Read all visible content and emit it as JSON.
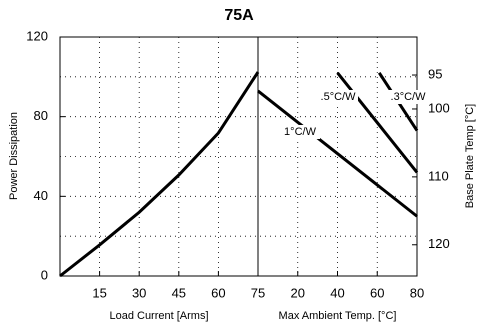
{
  "chart_data": {
    "type": "line",
    "title": "75A",
    "ylabel": "Power Dissipation",
    "ylim": [
      0,
      120
    ],
    "yticks": [
      0,
      40,
      80,
      120
    ],
    "ygrid": [
      20,
      40,
      60,
      80,
      100
    ],
    "grid": true,
    "y2label": "Base Plate Temp [°C]",
    "y2lim": [
      124.6,
      89.4
    ],
    "y2ticks": [
      95,
      100,
      110,
      120
    ],
    "panels": [
      {
        "xlabel": "Load Current  [Arms]",
        "xlim": [
          0,
          75
        ],
        "xticks": [
          15,
          30,
          45,
          60,
          75
        ],
        "series": [
          {
            "x": [
              0,
              15,
              30,
              45,
              60,
              75
            ],
            "values": [
              0,
              15.6,
              32,
              50.7,
              71.8,
              102.4
            ],
            "color": "#000000"
          }
        ]
      },
      {
        "xlabel": "Max Ambient Temp. [°C]",
        "xlim": [
          0,
          80
        ],
        "xticks": [
          20,
          40,
          60,
          80
        ],
        "series": [
          {
            "name": "1°C/W",
            "x": [
              0,
              80
            ],
            "values": [
              92.9,
              30
            ],
            "color": "#000000"
          },
          {
            "name": ".5°C/W",
            "x": [
              40,
              80
            ],
            "values": [
              102,
              52
            ],
            "color": "#000000"
          },
          {
            "name": ".3°C/W",
            "x": [
              61,
              80
            ],
            "values": [
              102,
              73
            ],
            "color": "#000000"
          }
        ]
      }
    ]
  }
}
